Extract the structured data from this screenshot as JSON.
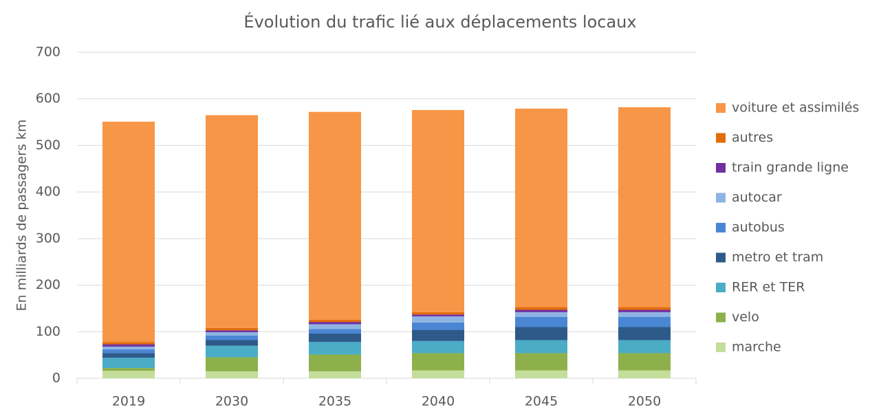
{
  "chart_data": {
    "type": "stacked_bar",
    "title": "Évolution du trafic lié aux déplacements locaux",
    "y_label": "En milliards de passagers km",
    "categories": [
      "2019",
      "2030",
      "2035",
      "2040",
      "2045",
      "2050"
    ],
    "series": [
      {
        "name": "marche",
        "color": "#c5dd9a",
        "values": [
          16,
          15,
          15,
          17,
          17,
          17
        ]
      },
      {
        "name": "velo",
        "color": "#8db04a",
        "values": [
          6,
          30,
          36,
          37,
          37,
          37
        ]
      },
      {
        "name": "RER et TER",
        "color": "#4bacc6",
        "values": [
          22,
          25,
          27,
          26,
          28,
          28
        ]
      },
      {
        "name": "metro et tram",
        "color": "#2e5a8a",
        "values": [
          10,
          12,
          18,
          24,
          28,
          28
        ]
      },
      {
        "name": "autobus",
        "color": "#4a86d4",
        "values": [
          8,
          10,
          10,
          16,
          22,
          22
        ]
      },
      {
        "name": "autocar",
        "color": "#8fb4e3",
        "values": [
          6,
          7,
          10,
          13,
          10,
          10
        ]
      },
      {
        "name": "train grande ligne",
        "color": "#7030a0",
        "values": [
          5,
          4,
          5,
          4,
          5,
          5
        ]
      },
      {
        "name": "autres",
        "color": "#e36c0a",
        "values": [
          5,
          5,
          5,
          5,
          6,
          6
        ]
      },
      {
        "name": "voiture et assimilés",
        "color": "#f79646",
        "values": [
          473,
          457,
          446,
          434,
          426,
          429
        ]
      }
    ],
    "ylim": [
      0,
      700
    ],
    "yticks": [
      0,
      100,
      200,
      300,
      400,
      500,
      600,
      700
    ],
    "grid": true,
    "legend": "right"
  }
}
